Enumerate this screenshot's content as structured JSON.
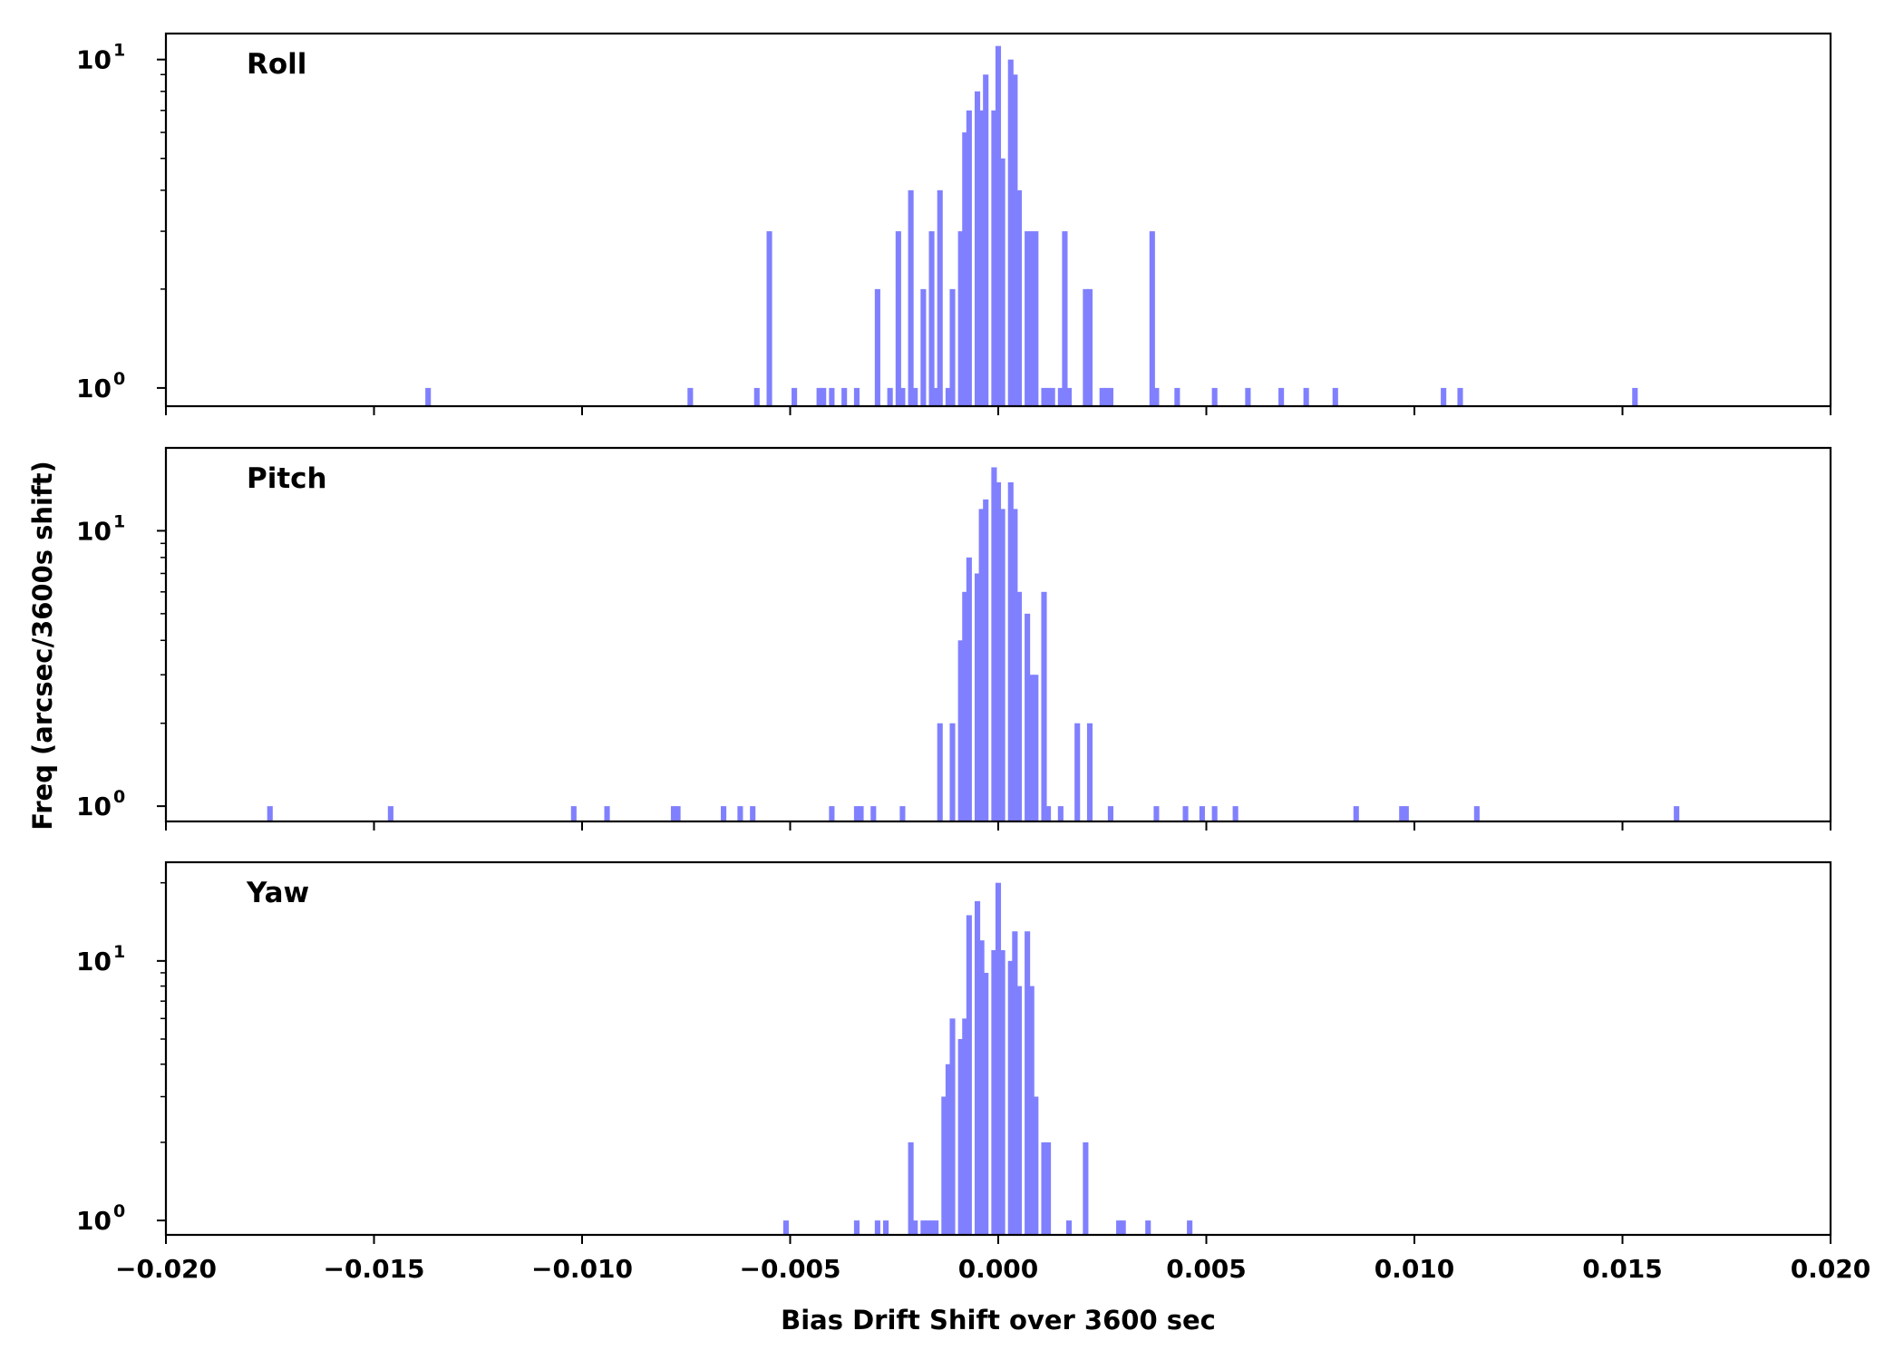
{
  "figure": {
    "ylabel": "Freq (arcsec/3600s shift)",
    "xlabel": "Bias Drift Shift over 3600 sec",
    "bar_color": "#8080ff"
  },
  "chart_data": [
    {
      "type": "bar",
      "title": "Roll",
      "xlim": [
        -0.02,
        0.02
      ],
      "ylim": [
        0.88,
        12
      ],
      "yscale": "log",
      "bin_width": 0.000133,
      "grid": false,
      "xtick_values": [
        -0.02,
        -0.015,
        -0.01,
        -0.005,
        0.0,
        0.005,
        0.01,
        0.015,
        0.02
      ],
      "ytick_labels": [
        "10^0",
        "10^1"
      ],
      "x": [
        -0.0137,
        -0.0074,
        -0.0058,
        -0.0055,
        -0.0049,
        -0.0043,
        -0.0042,
        -0.004,
        -0.0037,
        -0.0034,
        -0.0029,
        -0.0026,
        -0.0024,
        -0.0023,
        -0.0021,
        -0.002,
        -0.0018,
        -0.0016,
        -0.0015,
        -0.0014,
        -0.0012,
        -0.0011,
        -0.0009,
        -0.0008,
        -0.0007,
        -0.0005,
        -0.0004,
        -0.0003,
        -0.0001,
        0.0,
        0.0001,
        0.0003,
        0.0004,
        0.0005,
        0.0007,
        0.0008,
        0.0009,
        0.0011,
        0.0012,
        0.0013,
        0.0015,
        0.0016,
        0.0017,
        0.0021,
        0.0022,
        0.0025,
        0.0026,
        0.0027,
        0.0037,
        0.0038,
        0.0043,
        0.0052,
        0.006,
        0.0068,
        0.0074,
        0.0081,
        0.0107,
        0.0111,
        0.0153
      ],
      "values": [
        1,
        1,
        1,
        3,
        1,
        1,
        1,
        1,
        1,
        1,
        2,
        1,
        3,
        1,
        4,
        1,
        2,
        3,
        1,
        4,
        1,
        2,
        3,
        6,
        7,
        8,
        7,
        9,
        7,
        11,
        5,
        10,
        9,
        4,
        3,
        3,
        3,
        1,
        1,
        1,
        1,
        3,
        1,
        2,
        2,
        1,
        1,
        1,
        3,
        1,
        1,
        1,
        1,
        1,
        1,
        1,
        1,
        1,
        1
      ]
    },
    {
      "type": "bar",
      "title": "Pitch",
      "xlim": [
        -0.02,
        0.02
      ],
      "ylim": [
        0.88,
        20
      ],
      "yscale": "log",
      "bin_width": 0.000133,
      "grid": false,
      "xtick_values": [
        -0.02,
        -0.015,
        -0.01,
        -0.005,
        0.0,
        0.005,
        0.01,
        0.015,
        0.02
      ],
      "ytick_labels": [
        "10^0",
        "10^1"
      ],
      "x": [
        -0.0175,
        -0.0146,
        -0.0102,
        -0.0094,
        -0.0078,
        -0.0077,
        -0.0066,
        -0.0062,
        -0.0059,
        -0.004,
        -0.0034,
        -0.0033,
        -0.003,
        -0.0023,
        -0.0014,
        -0.0011,
        -0.0009,
        -0.0008,
        -0.0007,
        -0.0005,
        -0.0004,
        -0.0003,
        -0.0001,
        0.0,
        0.0001,
        0.0003,
        0.0004,
        0.0005,
        0.0007,
        0.0008,
        0.0009,
        0.0011,
        0.0012,
        0.0015,
        0.0019,
        0.0022,
        0.0027,
        0.0038,
        0.0045,
        0.0049,
        0.0052,
        0.0057,
        0.0086,
        0.0097,
        0.0098,
        0.0115,
        0.0163
      ],
      "values": [
        1,
        1,
        1,
        1,
        1,
        1,
        1,
        1,
        1,
        1,
        1,
        1,
        1,
        1,
        2,
        2,
        4,
        6,
        8,
        7,
        12,
        13,
        17,
        15,
        12,
        15,
        12,
        6,
        5,
        3,
        3,
        6,
        1,
        1,
        2,
        2,
        1,
        1,
        1,
        1,
        1,
        1,
        1,
        1,
        1,
        1,
        1
      ]
    },
    {
      "type": "bar",
      "title": "Yaw",
      "xlim": [
        -0.02,
        0.02
      ],
      "ylim": [
        0.88,
        24
      ],
      "yscale": "log",
      "bin_width": 0.000133,
      "grid": false,
      "xtick_values": [
        -0.02,
        -0.015,
        -0.01,
        -0.005,
        0.0,
        0.005,
        0.01,
        0.015,
        0.02
      ],
      "ytick_labels": [
        "10^0",
        "10^1"
      ],
      "x": [
        -0.0051,
        -0.0034,
        -0.0029,
        -0.0027,
        -0.0021,
        -0.002,
        -0.0018,
        -0.0017,
        -0.0016,
        -0.0015,
        -0.0013,
        -0.0012,
        -0.0011,
        -0.0009,
        -0.0008,
        -0.0007,
        -0.0005,
        -0.0004,
        -0.0003,
        -0.0001,
        0.0,
        0.0001,
        0.0003,
        0.0004,
        0.0005,
        0.0007,
        0.0008,
        0.0009,
        0.0011,
        0.0012,
        0.0017,
        0.0021,
        0.0029,
        0.003,
        0.0036,
        0.0046
      ],
      "values": [
        1,
        1,
        1,
        1,
        2,
        1,
        1,
        1,
        1,
        1,
        3,
        4,
        6,
        5,
        6,
        15,
        17,
        12,
        9,
        11,
        20,
        11,
        10,
        13,
        8,
        13,
        8,
        3,
        2,
        2,
        1,
        2,
        1,
        1,
        1,
        1
      ]
    }
  ]
}
